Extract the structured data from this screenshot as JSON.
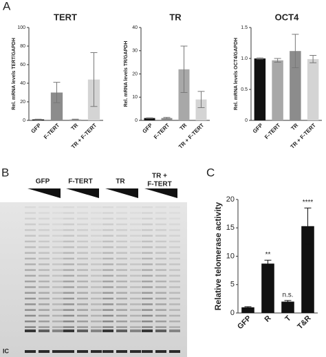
{
  "panel_labels": [
    "A",
    "B",
    "C"
  ],
  "gel": {
    "lanes": [
      [
        "GFP"
      ],
      [
        "F-TERT"
      ],
      [
        "TR"
      ],
      [
        "TR +",
        "F-TERT"
      ]
    ],
    "ic_label": "IC"
  },
  "chart_data": [
    {
      "type": "bar",
      "title": "TERT",
      "ylabel": "Rel. mRNA levels TERT/GAPDH",
      "categories": [
        "GFP",
        "F-TERT",
        "TR",
        "TR + F-TERT"
      ],
      "values": [
        1,
        30,
        1,
        44
      ],
      "errors": [
        0.3,
        11,
        0.3,
        29
      ],
      "colors": [
        "#111111",
        "#8c8c8c",
        "#a8a8a8",
        "#d4d4d4"
      ],
      "ylim": [
        0,
        100
      ],
      "yticks": [
        0,
        20,
        40,
        60,
        80,
        100
      ]
    },
    {
      "type": "bar",
      "title": "TR",
      "ylabel": "Rel. mRNA levels TR/GAPDH",
      "categories": [
        "GFP",
        "F-TERT",
        "TR",
        "TR + F-TERT"
      ],
      "values": [
        1,
        1,
        22,
        9
      ],
      "errors": [
        0.1,
        0.3,
        10,
        3.5
      ],
      "colors": [
        "#111111",
        "#8c8c8c",
        "#a8a8a8",
        "#d4d4d4"
      ],
      "ylim": [
        0,
        40
      ],
      "yticks": [
        0,
        10,
        20,
        30,
        40
      ]
    },
    {
      "type": "bar",
      "title": "OCT4",
      "ylabel": "Rel. mRNA levels OCT4/GAPDH",
      "categories": [
        "GFP",
        "F-TERT",
        "TR",
        "TR + F-TERT"
      ],
      "values": [
        1.0,
        0.97,
        1.12,
        0.99
      ],
      "errors": [
        0.01,
        0.03,
        0.27,
        0.06
      ],
      "colors": [
        "#111111",
        "#a8a8a8",
        "#8c8c8c",
        "#d4d4d4"
      ],
      "ylim": [
        0,
        1.5
      ],
      "yticks": [
        0,
        0.5,
        {
          "value": 1,
          "label": "1.0"
        },
        1.5
      ]
    },
    {
      "type": "bar",
      "ylabel": "Relative telomerase activity",
      "categories": [
        "GFP",
        "R",
        "T",
        "T&R"
      ],
      "values": [
        1,
        8.7,
        2,
        15.3
      ],
      "errors": [
        0.1,
        0.6,
        0.2,
        3.2
      ],
      "annotations": [
        null,
        "**",
        "n.s.",
        "****"
      ],
      "color": "#111111",
      "ylim": [
        0,
        20
      ],
      "yticks": [
        0,
        5,
        10,
        15,
        20
      ]
    }
  ]
}
